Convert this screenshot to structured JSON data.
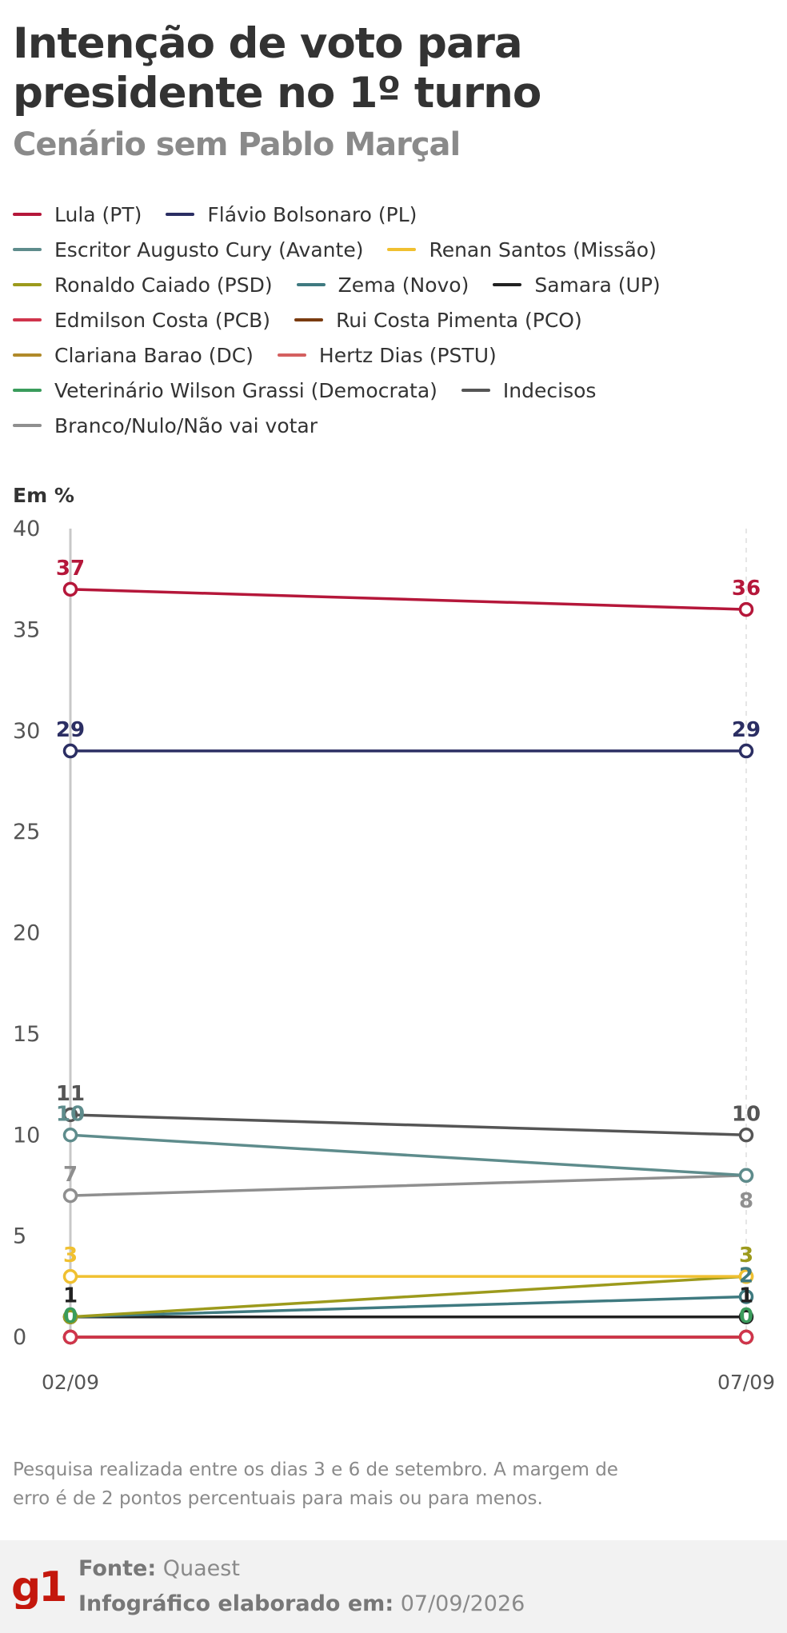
{
  "header": {
    "title": "Intenção de voto para presidente no 1º turno",
    "subtitle": "Cenário sem Pablo Marçal"
  },
  "chart_data": {
    "type": "line",
    "ylabel": "Em %",
    "ylim": [
      0,
      40
    ],
    "yticks": [
      0,
      5,
      10,
      15,
      20,
      25,
      30,
      35,
      40
    ],
    "x": [
      "02/09",
      "07/09"
    ],
    "series": [
      {
        "name": "Lula (PT)",
        "color": "#b5173a",
        "values": [
          37,
          36
        ],
        "labels": [
          "37",
          "36"
        ]
      },
      {
        "name": "Flávio Bolsonaro (PL)",
        "color": "#2b2e63",
        "values": [
          29,
          29
        ],
        "labels": [
          "29",
          "29"
        ]
      },
      {
        "name": "Escritor Augusto Cury (Avante)",
        "color": "#5e8c8c",
        "values": [
          10,
          8
        ],
        "labels": [
          "10",
          ""
        ]
      },
      {
        "name": "Renan Santos (Missão)",
        "color": "#f0c030",
        "values": [
          3,
          3
        ],
        "labels": [
          "3",
          ""
        ]
      },
      {
        "name": "Ronaldo Caiado (PSD)",
        "color": "#9c9a1c",
        "values": [
          1,
          3
        ],
        "labels": [
          "",
          "3"
        ]
      },
      {
        "name": "Zema (Novo)",
        "color": "#3f7a80",
        "values": [
          1,
          2
        ],
        "labels": [
          "",
          "2"
        ]
      },
      {
        "name": "Samara (UP)",
        "color": "#222222",
        "values": [
          1,
          1
        ],
        "labels": [
          "1",
          "1"
        ]
      },
      {
        "name": "Edmilson Costa (PCB)",
        "color": "#d0344c",
        "values": [
          0,
          0
        ],
        "labels": [
          "",
          ""
        ]
      },
      {
        "name": "Rui Costa Pimenta (PCO)",
        "color": "#7a3b10",
        "values": [
          0,
          0
        ],
        "labels": [
          "",
          ""
        ]
      },
      {
        "name": "Clariana Barao (DC)",
        "color": "#b08a2a",
        "values": [
          0,
          0
        ],
        "labels": [
          "",
          ""
        ]
      },
      {
        "name": "Hertz Dias (PSTU)",
        "color": "#d46060",
        "values": [
          0,
          0
        ],
        "labels": [
          "",
          ""
        ]
      },
      {
        "name": "Veterinário Wilson Grassi (Democrata)",
        "color": "#3a9c5c",
        "values": [
          0,
          0
        ],
        "labels": [
          "0",
          "0"
        ]
      },
      {
        "name": "Indecisos",
        "color": "#555555",
        "values": [
          11,
          10
        ],
        "labels": [
          "11",
          "10"
        ]
      },
      {
        "name": "Branco/Nulo/Não vai votar",
        "color": "#8f8f8f",
        "values": [
          7,
          8
        ],
        "labels": [
          "7",
          "8"
        ]
      }
    ]
  },
  "note": "Pesquisa realizada entre os dias 3 e 6 de setembro. A margem de erro é de 2 pontos percentuais para mais ou para menos.",
  "footer": {
    "logo_text": "g1",
    "source_label": "Fonte:",
    "source_value": "Quaest",
    "made_label": "Infográfico elaborado em:",
    "made_value": "07/09/2026",
    "brand_color": "#c4170c"
  }
}
